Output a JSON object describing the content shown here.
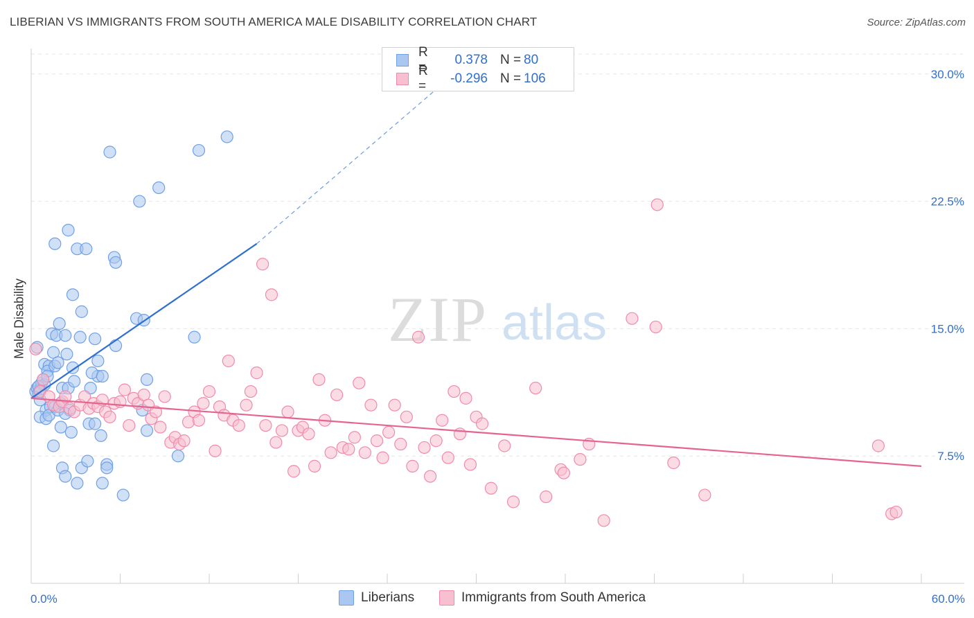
{
  "title": "LIBERIAN VS IMMIGRANTS FROM SOUTH AMERICA MALE DISABILITY CORRELATION CHART",
  "source": "Source: ZipAtlas.com",
  "watermark": {
    "zip": "ZIP",
    "atlas": "atlas"
  },
  "legend": {
    "rows": [
      {
        "r_label": "R =",
        "r_value": "0.378",
        "n_label": "N =",
        "n_value": "80",
        "color": "#6fa0e6"
      },
      {
        "r_label": "R =",
        "r_value": "-0.296",
        "n_label": "N =",
        "n_value": "106",
        "color": "#f08aab"
      }
    ]
  },
  "bottom_legend": [
    "Liberians",
    "Immigrants from South America"
  ],
  "colors": {
    "blue_fill": "#a9c7f0",
    "blue_stroke": "#6fa0e6",
    "blue_line": "#2f6fd0",
    "pink_fill": "#f7bfd0",
    "pink_stroke": "#f08aab",
    "pink_line": "#e5638f",
    "axis_label": "#2f6fd0",
    "grid": "#e6e6e6"
  },
  "chart_data": {
    "type": "scatter",
    "title": "LIBERIAN VS IMMIGRANTS FROM SOUTH AMERICA MALE DISABILITY CORRELATION CHART",
    "xlabel": "",
    "ylabel": "Male Disability",
    "xlim": [
      0,
      60
    ],
    "ylim": [
      0,
      31.5
    ],
    "x_tick_labels": [
      "0.0%",
      "60.0%"
    ],
    "y_ticks": [
      7.5,
      15.0,
      22.5,
      30.0
    ],
    "y_tick_labels": [
      "7.5%",
      "15.0%",
      "22.5%",
      "30.0%"
    ],
    "grid": true,
    "legend_position": "top-center",
    "series": [
      {
        "name": "Liberians",
        "r": 0.378,
        "n": 80,
        "trend": {
          "x": [
            0,
            15.2
          ],
          "y": [
            10.9,
            20.0
          ],
          "dashed_to": [
            28.5,
            30.0
          ]
        },
        "points": [
          [
            0.3,
            11.3
          ],
          [
            0.4,
            11.5
          ],
          [
            0.5,
            11.6
          ],
          [
            0.6,
            11.4
          ],
          [
            0.5,
            11.2
          ],
          [
            0.7,
            11.8
          ],
          [
            0.8,
            12.0
          ],
          [
            0.6,
            10.8
          ],
          [
            0.4,
            13.9
          ],
          [
            0.9,
            12.9
          ],
          [
            1.2,
            12.8
          ],
          [
            1.1,
            12.5
          ],
          [
            1.4,
            14.7
          ],
          [
            1.5,
            13.6
          ],
          [
            1.0,
            10.2
          ],
          [
            1.3,
            10.4
          ],
          [
            0.6,
            9.8
          ],
          [
            1.0,
            9.7
          ],
          [
            1.2,
            9.9
          ],
          [
            1.6,
            10.4
          ],
          [
            1.8,
            10.2
          ],
          [
            1.9,
            15.3
          ],
          [
            1.7,
            14.6
          ],
          [
            2.3,
            14.6
          ],
          [
            2.4,
            13.5
          ],
          [
            2.8,
            12.7
          ],
          [
            2.1,
            11.5
          ],
          [
            2.5,
            11.5
          ],
          [
            2.9,
            11.9
          ],
          [
            2.0,
            10.6
          ],
          [
            2.6,
            10.2
          ],
          [
            2.3,
            10.0
          ],
          [
            1.5,
            8.1
          ],
          [
            2.0,
            9.2
          ],
          [
            2.7,
            8.9
          ],
          [
            2.1,
            6.8
          ],
          [
            2.3,
            6.3
          ],
          [
            3.1,
            5.9
          ],
          [
            3.4,
            6.8
          ],
          [
            3.8,
            7.2
          ],
          [
            2.5,
            20.8
          ],
          [
            1.6,
            20.0
          ],
          [
            3.1,
            19.7
          ],
          [
            3.7,
            19.7
          ],
          [
            2.8,
            17.0
          ],
          [
            3.4,
            16.0
          ],
          [
            3.3,
            14.5
          ],
          [
            4.3,
            14.4
          ],
          [
            4.0,
            11.5
          ],
          [
            4.5,
            12.2
          ],
          [
            4.1,
            12.4
          ],
          [
            4.5,
            13.1
          ],
          [
            4.8,
            12.2
          ],
          [
            3.9,
            9.4
          ],
          [
            4.3,
            9.4
          ],
          [
            4.7,
            8.7
          ],
          [
            5.1,
            7.0
          ],
          [
            5.1,
            6.8
          ],
          [
            4.8,
            5.9
          ],
          [
            6.2,
            5.2
          ],
          [
            5.3,
            25.4
          ],
          [
            5.6,
            19.2
          ],
          [
            5.7,
            18.9
          ],
          [
            5.7,
            14.0
          ],
          [
            7.1,
            15.6
          ],
          [
            7.6,
            15.5
          ],
          [
            7.8,
            12.0
          ],
          [
            7.8,
            9.0
          ],
          [
            7.5,
            10.2
          ],
          [
            7.3,
            22.5
          ],
          [
            8.6,
            23.3
          ],
          [
            9.9,
            7.5
          ],
          [
            11.3,
            25.5
          ],
          [
            11.0,
            14.5
          ],
          [
            13.2,
            26.3
          ],
          [
            1.6,
            12.8
          ],
          [
            0.9,
            11.7
          ],
          [
            1.1,
            12.2
          ],
          [
            0.5,
            11.6
          ],
          [
            1.8,
            13.0
          ]
        ]
      },
      {
        "name": "Immigrants from South America",
        "r": -0.296,
        "n": 106,
        "trend": {
          "x": [
            0,
            60
          ],
          "y": [
            10.9,
            6.9
          ]
        },
        "points": [
          [
            0.3,
            13.8
          ],
          [
            0.6,
            11.3
          ],
          [
            0.8,
            12.0
          ],
          [
            1.2,
            11.0
          ],
          [
            1.5,
            10.5
          ],
          [
            1.9,
            10.4
          ],
          [
            2.1,
            10.7
          ],
          [
            2.3,
            11.0
          ],
          [
            2.6,
            10.3
          ],
          [
            2.9,
            10.1
          ],
          [
            3.3,
            10.5
          ],
          [
            3.6,
            11.0
          ],
          [
            3.9,
            10.3
          ],
          [
            4.2,
            10.6
          ],
          [
            4.5,
            10.4
          ],
          [
            4.8,
            10.8
          ],
          [
            5.0,
            10.1
          ],
          [
            5.3,
            9.8
          ],
          [
            5.6,
            10.6
          ],
          [
            6.0,
            10.7
          ],
          [
            6.3,
            11.4
          ],
          [
            6.6,
            9.3
          ],
          [
            6.9,
            10.9
          ],
          [
            7.2,
            10.6
          ],
          [
            7.6,
            11.1
          ],
          [
            7.9,
            10.5
          ],
          [
            8.1,
            9.7
          ],
          [
            8.4,
            10.1
          ],
          [
            8.7,
            9.2
          ],
          [
            9.0,
            11.0
          ],
          [
            9.4,
            8.3
          ],
          [
            9.7,
            8.6
          ],
          [
            10.0,
            8.2
          ],
          [
            10.3,
            8.4
          ],
          [
            10.6,
            9.5
          ],
          [
            11.0,
            10.1
          ],
          [
            11.3,
            9.6
          ],
          [
            11.6,
            10.6
          ],
          [
            12.0,
            11.3
          ],
          [
            12.4,
            7.8
          ],
          [
            12.7,
            10.4
          ],
          [
            13.0,
            9.9
          ],
          [
            13.3,
            13.1
          ],
          [
            13.6,
            9.6
          ],
          [
            14.0,
            9.3
          ],
          [
            14.5,
            10.5
          ],
          [
            14.8,
            11.3
          ],
          [
            15.2,
            12.4
          ],
          [
            15.6,
            18.8
          ],
          [
            15.8,
            9.3
          ],
          [
            16.2,
            17.0
          ],
          [
            16.5,
            8.3
          ],
          [
            16.9,
            9.0
          ],
          [
            17.3,
            10.1
          ],
          [
            17.7,
            6.6
          ],
          [
            18.0,
            9.0
          ],
          [
            18.3,
            9.2
          ],
          [
            18.7,
            8.8
          ],
          [
            19.1,
            6.9
          ],
          [
            19.4,
            12.0
          ],
          [
            19.8,
            9.6
          ],
          [
            20.2,
            7.7
          ],
          [
            20.6,
            11.1
          ],
          [
            21.0,
            8.0
          ],
          [
            21.4,
            7.9
          ],
          [
            21.8,
            8.6
          ],
          [
            22.1,
            11.8
          ],
          [
            22.5,
            7.7
          ],
          [
            22.9,
            10.5
          ],
          [
            23.3,
            8.4
          ],
          [
            23.7,
            7.4
          ],
          [
            24.1,
            8.9
          ],
          [
            24.5,
            10.5
          ],
          [
            24.9,
            8.2
          ],
          [
            25.3,
            9.8
          ],
          [
            25.7,
            6.9
          ],
          [
            26.1,
            14.5
          ],
          [
            26.5,
            8.0
          ],
          [
            26.9,
            6.3
          ],
          [
            27.3,
            8.4
          ],
          [
            27.7,
            9.6
          ],
          [
            28.1,
            7.4
          ],
          [
            28.5,
            11.3
          ],
          [
            28.9,
            8.8
          ],
          [
            29.3,
            10.9
          ],
          [
            29.6,
            7.0
          ],
          [
            30.0,
            9.8
          ],
          [
            30.4,
            9.4
          ],
          [
            31.0,
            5.6
          ],
          [
            31.9,
            8.1
          ],
          [
            32.5,
            4.8
          ],
          [
            34.0,
            11.5
          ],
          [
            34.7,
            5.1
          ],
          [
            35.7,
            6.7
          ],
          [
            35.9,
            6.5
          ],
          [
            37.0,
            7.3
          ],
          [
            37.6,
            8.2
          ],
          [
            38.6,
            3.7
          ],
          [
            40.5,
            15.6
          ],
          [
            42.1,
            15.1
          ],
          [
            42.2,
            22.3
          ],
          [
            43.3,
            7.1
          ],
          [
            45.4,
            5.2
          ],
          [
            57.1,
            8.1
          ],
          [
            58.0,
            4.1
          ],
          [
            58.3,
            4.2
          ]
        ]
      }
    ]
  }
}
